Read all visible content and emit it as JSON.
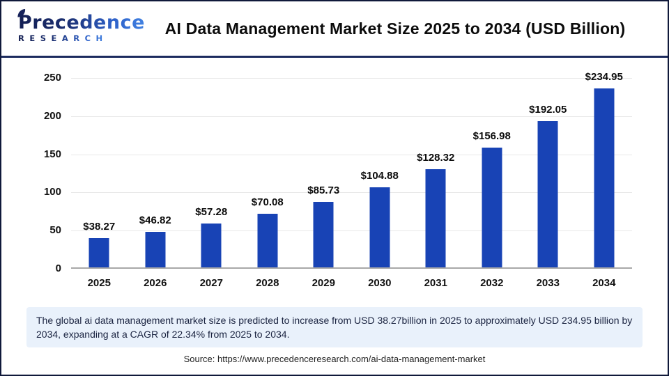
{
  "header": {
    "logo": {
      "line1": "Precedence",
      "line2": "RESEARCH",
      "color_dark": "#1b2f71",
      "color_light": "#4182e2"
    },
    "title": "AI Data Management Market Size 2025 to 2034 (USD Billion)"
  },
  "chart_data": {
    "type": "bar",
    "title": "AI Data Management Market Size 2025 to 2034 (USD Billion)",
    "categories": [
      "2025",
      "2026",
      "2027",
      "2028",
      "2029",
      "2030",
      "2031",
      "2032",
      "2033",
      "2034"
    ],
    "values": [
      38.27,
      46.82,
      57.28,
      70.08,
      85.73,
      104.88,
      128.32,
      156.98,
      192.05,
      234.95
    ],
    "value_labels": [
      "$38.27",
      "$46.82",
      "$57.28",
      "$70.08",
      "$85.73",
      "$104.88",
      "$128.32",
      "$156.98",
      "$192.05",
      "$234.95"
    ],
    "xlabel": "",
    "ylabel": "",
    "ylim": [
      0,
      250
    ],
    "yticks": [
      0,
      50,
      100,
      150,
      200,
      250
    ],
    "grid": true,
    "legend": "none",
    "bar_color": "#1843b5"
  },
  "footer": {
    "description": "The global ai data management market size is predicted to increase from USD 38.27billion in 2025 to approximately USD 234.95 billion by 2034, expanding at a CAGR of 22.34% from 2025 to 2034.",
    "source": "Source: https://www.precedenceresearch.com/ai-data-management-market"
  }
}
